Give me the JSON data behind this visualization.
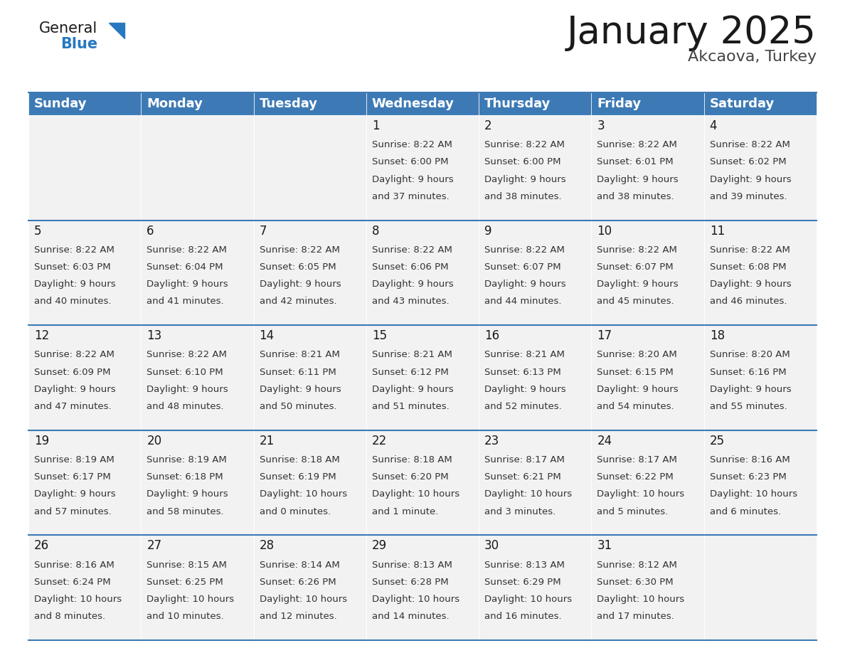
{
  "title": "January 2025",
  "subtitle": "Akcaova, Turkey",
  "header_color": "#3d7ab5",
  "header_text_color": "#ffffff",
  "cell_bg_color": "#f2f2f2",
  "border_color": "#3d7ab5",
  "day_names": [
    "Sunday",
    "Monday",
    "Tuesday",
    "Wednesday",
    "Thursday",
    "Friday",
    "Saturday"
  ],
  "title_fontsize": 38,
  "subtitle_fontsize": 16,
  "header_fontsize": 13,
  "day_num_fontsize": 12,
  "cell_fontsize": 9.5,
  "logo_general_fontsize": 15,
  "logo_blue_fontsize": 15,
  "days": [
    {
      "day": 1,
      "col": 3,
      "row": 0,
      "sunrise": "8:22 AM",
      "sunset": "6:00 PM",
      "daylight_line1": "Daylight: 9 hours",
      "daylight_line2": "and 37 minutes."
    },
    {
      "day": 2,
      "col": 4,
      "row": 0,
      "sunrise": "8:22 AM",
      "sunset": "6:00 PM",
      "daylight_line1": "Daylight: 9 hours",
      "daylight_line2": "and 38 minutes."
    },
    {
      "day": 3,
      "col": 5,
      "row": 0,
      "sunrise": "8:22 AM",
      "sunset": "6:01 PM",
      "daylight_line1": "Daylight: 9 hours",
      "daylight_line2": "and 38 minutes."
    },
    {
      "day": 4,
      "col": 6,
      "row": 0,
      "sunrise": "8:22 AM",
      "sunset": "6:02 PM",
      "daylight_line1": "Daylight: 9 hours",
      "daylight_line2": "and 39 minutes."
    },
    {
      "day": 5,
      "col": 0,
      "row": 1,
      "sunrise": "8:22 AM",
      "sunset": "6:03 PM",
      "daylight_line1": "Daylight: 9 hours",
      "daylight_line2": "and 40 minutes."
    },
    {
      "day": 6,
      "col": 1,
      "row": 1,
      "sunrise": "8:22 AM",
      "sunset": "6:04 PM",
      "daylight_line1": "Daylight: 9 hours",
      "daylight_line2": "and 41 minutes."
    },
    {
      "day": 7,
      "col": 2,
      "row": 1,
      "sunrise": "8:22 AM",
      "sunset": "6:05 PM",
      "daylight_line1": "Daylight: 9 hours",
      "daylight_line2": "and 42 minutes."
    },
    {
      "day": 8,
      "col": 3,
      "row": 1,
      "sunrise": "8:22 AM",
      "sunset": "6:06 PM",
      "daylight_line1": "Daylight: 9 hours",
      "daylight_line2": "and 43 minutes."
    },
    {
      "day": 9,
      "col": 4,
      "row": 1,
      "sunrise": "8:22 AM",
      "sunset": "6:07 PM",
      "daylight_line1": "Daylight: 9 hours",
      "daylight_line2": "and 44 minutes."
    },
    {
      "day": 10,
      "col": 5,
      "row": 1,
      "sunrise": "8:22 AM",
      "sunset": "6:07 PM",
      "daylight_line1": "Daylight: 9 hours",
      "daylight_line2": "and 45 minutes."
    },
    {
      "day": 11,
      "col": 6,
      "row": 1,
      "sunrise": "8:22 AM",
      "sunset": "6:08 PM",
      "daylight_line1": "Daylight: 9 hours",
      "daylight_line2": "and 46 minutes."
    },
    {
      "day": 12,
      "col": 0,
      "row": 2,
      "sunrise": "8:22 AM",
      "sunset": "6:09 PM",
      "daylight_line1": "Daylight: 9 hours",
      "daylight_line2": "and 47 minutes."
    },
    {
      "day": 13,
      "col": 1,
      "row": 2,
      "sunrise": "8:22 AM",
      "sunset": "6:10 PM",
      "daylight_line1": "Daylight: 9 hours",
      "daylight_line2": "and 48 minutes."
    },
    {
      "day": 14,
      "col": 2,
      "row": 2,
      "sunrise": "8:21 AM",
      "sunset": "6:11 PM",
      "daylight_line1": "Daylight: 9 hours",
      "daylight_line2": "and 50 minutes."
    },
    {
      "day": 15,
      "col": 3,
      "row": 2,
      "sunrise": "8:21 AM",
      "sunset": "6:12 PM",
      "daylight_line1": "Daylight: 9 hours",
      "daylight_line2": "and 51 minutes."
    },
    {
      "day": 16,
      "col": 4,
      "row": 2,
      "sunrise": "8:21 AM",
      "sunset": "6:13 PM",
      "daylight_line1": "Daylight: 9 hours",
      "daylight_line2": "and 52 minutes."
    },
    {
      "day": 17,
      "col": 5,
      "row": 2,
      "sunrise": "8:20 AM",
      "sunset": "6:15 PM",
      "daylight_line1": "Daylight: 9 hours",
      "daylight_line2": "and 54 minutes."
    },
    {
      "day": 18,
      "col": 6,
      "row": 2,
      "sunrise": "8:20 AM",
      "sunset": "6:16 PM",
      "daylight_line1": "Daylight: 9 hours",
      "daylight_line2": "and 55 minutes."
    },
    {
      "day": 19,
      "col": 0,
      "row": 3,
      "sunrise": "8:19 AM",
      "sunset": "6:17 PM",
      "daylight_line1": "Daylight: 9 hours",
      "daylight_line2": "and 57 minutes."
    },
    {
      "day": 20,
      "col": 1,
      "row": 3,
      "sunrise": "8:19 AM",
      "sunset": "6:18 PM",
      "daylight_line1": "Daylight: 9 hours",
      "daylight_line2": "and 58 minutes."
    },
    {
      "day": 21,
      "col": 2,
      "row": 3,
      "sunrise": "8:18 AM",
      "sunset": "6:19 PM",
      "daylight_line1": "Daylight: 10 hours",
      "daylight_line2": "and 0 minutes."
    },
    {
      "day": 22,
      "col": 3,
      "row": 3,
      "sunrise": "8:18 AM",
      "sunset": "6:20 PM",
      "daylight_line1": "Daylight: 10 hours",
      "daylight_line2": "and 1 minute."
    },
    {
      "day": 23,
      "col": 4,
      "row": 3,
      "sunrise": "8:17 AM",
      "sunset": "6:21 PM",
      "daylight_line1": "Daylight: 10 hours",
      "daylight_line2": "and 3 minutes."
    },
    {
      "day": 24,
      "col": 5,
      "row": 3,
      "sunrise": "8:17 AM",
      "sunset": "6:22 PM",
      "daylight_line1": "Daylight: 10 hours",
      "daylight_line2": "and 5 minutes."
    },
    {
      "day": 25,
      "col": 6,
      "row": 3,
      "sunrise": "8:16 AM",
      "sunset": "6:23 PM",
      "daylight_line1": "Daylight: 10 hours",
      "daylight_line2": "and 6 minutes."
    },
    {
      "day": 26,
      "col": 0,
      "row": 4,
      "sunrise": "8:16 AM",
      "sunset": "6:24 PM",
      "daylight_line1": "Daylight: 10 hours",
      "daylight_line2": "and 8 minutes."
    },
    {
      "day": 27,
      "col": 1,
      "row": 4,
      "sunrise": "8:15 AM",
      "sunset": "6:25 PM",
      "daylight_line1": "Daylight: 10 hours",
      "daylight_line2": "and 10 minutes."
    },
    {
      "day": 28,
      "col": 2,
      "row": 4,
      "sunrise": "8:14 AM",
      "sunset": "6:26 PM",
      "daylight_line1": "Daylight: 10 hours",
      "daylight_line2": "and 12 minutes."
    },
    {
      "day": 29,
      "col": 3,
      "row": 4,
      "sunrise": "8:13 AM",
      "sunset": "6:28 PM",
      "daylight_line1": "Daylight: 10 hours",
      "daylight_line2": "and 14 minutes."
    },
    {
      "day": 30,
      "col": 4,
      "row": 4,
      "sunrise": "8:13 AM",
      "sunset": "6:29 PM",
      "daylight_line1": "Daylight: 10 hours",
      "daylight_line2": "and 16 minutes."
    },
    {
      "day": 31,
      "col": 5,
      "row": 4,
      "sunrise": "8:12 AM",
      "sunset": "6:30 PM",
      "daylight_line1": "Daylight: 10 hours",
      "daylight_line2": "and 17 minutes."
    }
  ]
}
